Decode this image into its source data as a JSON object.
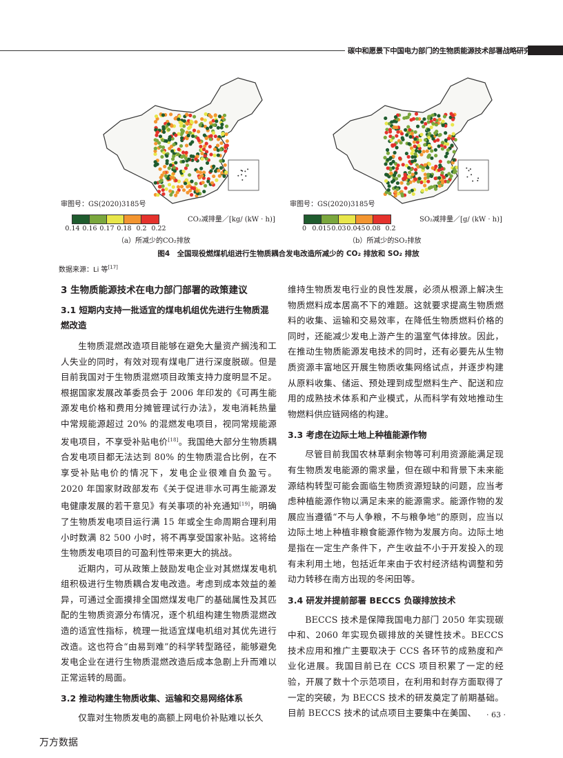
{
  "header": {
    "running_title": "碳中和愿景下中国电力部门的生物质能源技术部署战略研究"
  },
  "figure": {
    "caption": "图4　全国现役燃煤机组进行生物质耦合发电改造所减少的 CO₂ 排放和 SO₂ 排放",
    "source": "数据来源：Li 等",
    "source_ref": "[17]",
    "panels": [
      {
        "approval": "审图号：GS(2020)3185号",
        "legend_title": "CO₂减排量／[kg/ (kW · h)]",
        "ticks": [
          "0.14",
          "0.16",
          "0.17",
          "0.18",
          "0.2",
          "0.22"
        ],
        "subcaption": "（a）所减少的CO₂排放"
      },
      {
        "approval": "审图号：GS(2020)3185号",
        "legend_title": "SO₂减排量／[g/ (kW · h)]",
        "ticks": [
          "0",
          "0.015",
          "0.03",
          "0.045",
          "0.08",
          "0.2"
        ],
        "subcaption": "（b）所减少的SO₂排放"
      }
    ],
    "legend_colors": [
      "#1f5c2e",
      "#7aa73d",
      "#e8e64a",
      "#f39530",
      "#e5322c"
    ]
  },
  "left": {
    "h_3": "3  生物质能源技术在电力部门部署的政策建议",
    "h_31": "3.1  短期内支持一批适宜的煤电机组优先进行生物质混燃改造",
    "p1a": "生物质混燃改造项目能够在避免大量资产搁浅和工人失业的同时，有效对现有煤电厂进行深度脱碳。但是目前我国对于生物质混燃项目政策支持力度明显不足。根据国家发展改革委员会于 2006 年印发的《可再生能源发电价格和费用分摊管理试行办法》，发电消耗热量中常规能源超过 20% 的混燃发电项目，视同常规能源发电项目，不享受补贴电价",
    "ref18": "[18]",
    "p1b": "。我国绝大部分生物质耦合发电项目都无法达到 80% 的生物质混合比例，在不享受补贴电价的情况下，发电企业很难自负盈亏。2020 年国家财政部发布《关于促进非水可再生能源发电健康发展的若干意见》有关事项的补充通知",
    "ref19": "[19]",
    "p1c": "，明确了生物质发电项目运行满 15 年或全生命周期合理利用小时数满 82 500 小时，将不再享受国家补贴。这将给生物质发电项目的可盈利性带来更大的挑战。",
    "p2": "近期内，可从政策上鼓励发电企业对其燃煤发电机组积极进行生物质耦合发电改造。考虑到成本效益的差异，可通过全面摸排全国燃煤发电厂的基础属性及其匹配的生物质资源分布情况，逐个机组构建生物质混燃改造的适宜性指标，梳理一批适宜煤电机组对其优先进行改造。这也符合“由易到难”的科学转型路径，能够避免发电企业在进行生物质混燃改造后成本急剧上升而难以正常运转的局面。",
    "h_32": "3.2  推动构建生物质收集、运输和交易网络体系",
    "p3": "仅靠对生物质发电的高额上网电价补贴难以长久"
  },
  "right": {
    "p3c": "维持生物质发电行业的良性发展，必须从根源上解决生物质燃料成本居高不下的难题。这就要求提高生物质燃料的收集、运输和交易效率，在降低生物质燃料价格的同时，还能减少发电上游产生的温室气体排放。因此，在推动生物质能源发电技术的同时，还有必要先从生物质资源丰富地区开展生物质收集网络试点，并逐步构建从原料收集、储运、预处理到成型燃料生产、配送和应用的成熟技术体系和产业模式，从而科学有效地推动生物燃料供应链网络的构建。",
    "h_33": "3.3  考虑在边际土地上种植能源作物",
    "p4": "尽管目前我国农林草剩余物等可利用资源能满足现有生物质发电能源的需求量，但在碳中和背景下未来能源结构转型可能会面临生物质资源短缺的问题，应当考虑种植能源作物以满足未来的能源需求。能源作物的发展应当遵循“不与人争粮，不与粮争地”的原则，应当以边际土地上种植非粮食能源作物为发展方向。边际土地是指在一定生产条件下，产生收益不小于开发投入的现有未利用土地，包括近年来由于农村经济结构调整和劳动力转移在南方出现的冬闲田等。",
    "h_34": "3.4  研发并提前部署 BECCS 负碳排放技术",
    "p5": "BECCS 技术是保障我国电力部门 2050 年实现碳中和、2060 年实现负碳排放的关键性技术。BECCS 技术应用和推广主要取决于 CCS 各环节的成熟度和产业化进展。我国目前已在 CCS 项目积累了一定的经验，开展了数十个示范项目，在利用和封存方面取得了一定的突破，为 BECCS 技术的研发奠定了前期基础。目前 BECCS 技术的试点项目主要集中在美国、"
  },
  "footer": {
    "page": "· 63 ·",
    "watermark": "万方数据"
  }
}
